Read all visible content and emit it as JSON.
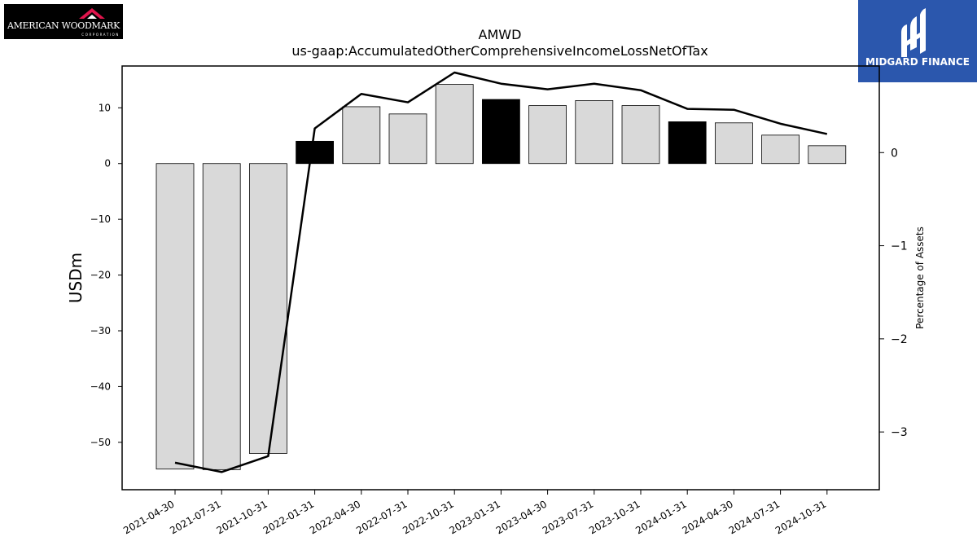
{
  "logos": {
    "left": {
      "text": "AMERICAN WOODMARK",
      "subtext": "CORPORATION"
    },
    "right": {
      "text": "MIDGARD FINANCE"
    }
  },
  "chart_data": {
    "type": "bar",
    "title": "AMWD",
    "subtitle": "us-gaap:AccumulatedOtherComprehensiveIncomeLossNetOfTax",
    "ylabel": "USDm",
    "y2label": "Percentage of Assets",
    "categories": [
      "2021-04-30",
      "2021-07-31",
      "2021-10-31",
      "2022-01-31",
      "2022-04-30",
      "2022-07-31",
      "2022-10-31",
      "2023-01-31",
      "2023-04-30",
      "2023-07-31",
      "2023-10-31",
      "2024-01-31",
      "2024-04-30",
      "2024-07-31",
      "2024-10-31"
    ],
    "series": [
      {
        "axis": "left",
        "type": "bar",
        "values": [
          -54.8,
          -54.9,
          -52.0,
          4.0,
          10.2,
          8.9,
          14.2,
          11.5,
          10.4,
          11.3,
          10.4,
          7.5,
          7.3,
          5.1,
          3.2
        ],
        "highlighted": [
          false,
          false,
          false,
          true,
          false,
          false,
          false,
          true,
          false,
          false,
          false,
          true,
          false,
          false,
          false
        ]
      },
      {
        "axis": "right",
        "type": "line",
        "values": [
          -3.33,
          -3.43,
          -3.26,
          0.26,
          0.63,
          0.54,
          0.86,
          0.74,
          0.68,
          0.74,
          0.67,
          0.47,
          0.46,
          0.31,
          0.2
        ]
      }
    ],
    "ylim": [
      -58.5,
      17.5
    ],
    "y2lim": [
      -3.62,
      0.93
    ],
    "yticks": [
      -50,
      -40,
      -30,
      -20,
      -10,
      0,
      10
    ],
    "y2ticks": [
      -3,
      -2,
      -1,
      0
    ],
    "grid": false,
    "colors": {
      "bar": "#d9d9d9",
      "bar_highlight": "#000000",
      "line": "#000000",
      "edge": "#000000"
    }
  }
}
